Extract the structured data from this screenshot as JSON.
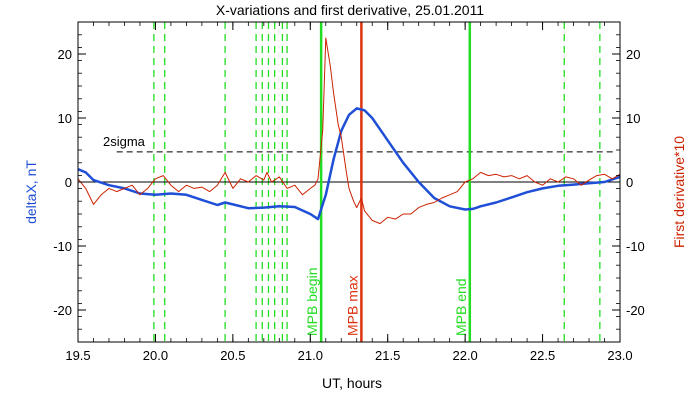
{
  "chart_data": {
    "type": "line",
    "title": "X-variations and first derivative, 25.01.2011",
    "xlabel": "UT, hours",
    "ylabel_left": "deltaX, nT",
    "ylabel_right": "First derivative*10",
    "xlim": [
      19.5,
      23.0
    ],
    "ylim": [
      -25,
      25
    ],
    "x_ticks": [
      "19.5",
      "20.0",
      "20.5",
      "21.0",
      "21.5",
      "22.0",
      "22.5",
      "23.0"
    ],
    "y_ticks": [
      "20",
      "10",
      "0",
      "-10",
      "-20"
    ],
    "colors": {
      "deltaX": "#1f4fd6",
      "derivative": "#cc2200",
      "green": "#22dd22",
      "red": "#dd3311",
      "axis": "#000000"
    },
    "threshold": {
      "label": "2sigma",
      "value": 4.7
    },
    "series": [
      {
        "key": "deltaX",
        "x": [
          19.5,
          19.55,
          19.6,
          19.7,
          19.8,
          19.9,
          20.0,
          20.1,
          20.2,
          20.3,
          20.4,
          20.45,
          20.5,
          20.6,
          20.7,
          20.8,
          20.9,
          21.0,
          21.05,
          21.1,
          21.15,
          21.2,
          21.25,
          21.3,
          21.35,
          21.4,
          21.5,
          21.6,
          21.7,
          21.8,
          21.9,
          22.0,
          22.05,
          22.1,
          22.2,
          22.3,
          22.4,
          22.5,
          22.6,
          22.7,
          22.8,
          22.9,
          23.0
        ],
        "y": [
          2.0,
          1.5,
          0.3,
          -0.5,
          -1.0,
          -1.8,
          -2.0,
          -1.8,
          -2.0,
          -2.8,
          -3.6,
          -3.2,
          -3.5,
          -4.1,
          -4.0,
          -3.8,
          -3.9,
          -5.0,
          -5.8,
          -2.0,
          3.5,
          8.0,
          10.5,
          11.5,
          11.2,
          10.0,
          6.5,
          3.0,
          0.0,
          -2.5,
          -3.8,
          -4.3,
          -4.2,
          -3.8,
          -3.2,
          -2.4,
          -1.6,
          -1.0,
          -0.6,
          -0.4,
          -0.2,
          0.0,
          0.8
        ]
      },
      {
        "key": "derivative",
        "x": [
          19.5,
          19.55,
          19.6,
          19.65,
          19.7,
          19.75,
          19.8,
          19.85,
          19.9,
          19.95,
          20.0,
          20.05,
          20.1,
          20.15,
          20.2,
          20.25,
          20.3,
          20.35,
          20.4,
          20.45,
          20.5,
          20.55,
          20.6,
          20.65,
          20.7,
          20.72,
          20.75,
          20.8,
          20.85,
          20.9,
          20.95,
          21.0,
          21.03,
          21.05,
          21.08,
          21.1,
          21.13,
          21.15,
          21.18,
          21.2,
          21.23,
          21.25,
          21.28,
          21.3,
          21.33,
          21.35,
          21.4,
          21.45,
          21.5,
          21.55,
          21.6,
          21.65,
          21.7,
          21.75,
          21.8,
          21.85,
          21.9,
          21.95,
          22.0,
          22.05,
          22.1,
          22.15,
          22.2,
          22.25,
          22.3,
          22.35,
          22.4,
          22.45,
          22.5,
          22.55,
          22.6,
          22.65,
          22.7,
          22.75,
          22.8,
          22.85,
          22.9,
          22.95,
          23.0
        ],
        "y": [
          0.5,
          -1.0,
          -3.5,
          -2.0,
          -1.0,
          -1.5,
          -1.0,
          -0.5,
          -2.0,
          -1.0,
          0.5,
          1.0,
          -0.5,
          -1.5,
          -0.5,
          -1.0,
          -0.8,
          -1.5,
          -0.5,
          1.5,
          -1.0,
          0.5,
          0.0,
          1.0,
          0.3,
          1.5,
          0.0,
          0.8,
          -1.0,
          -0.5,
          -2.0,
          -1.0,
          -0.5,
          0.5,
          8.0,
          22.5,
          18.0,
          14.0,
          9.0,
          7.0,
          2.0,
          -1.0,
          -3.0,
          -4.0,
          -2.5,
          -4.5,
          -6.0,
          -6.5,
          -5.5,
          -5.8,
          -5.0,
          -5.0,
          -4.0,
          -3.5,
          -3.2,
          -2.5,
          -2.0,
          -1.5,
          0.0,
          0.5,
          1.5,
          1.0,
          1.2,
          0.8,
          1.0,
          0.5,
          1.0,
          0.0,
          -0.5,
          0.5,
          0.0,
          0.8,
          0.5,
          -0.5,
          0.3,
          1.0,
          1.2,
          0.5,
          1.2
        ]
      }
    ],
    "dashed_verticals": [
      19.99,
      20.06,
      20.45,
      20.65,
      20.69,
      20.73,
      20.77,
      20.82,
      20.85,
      22.64,
      22.87
    ],
    "solid_markers": [
      {
        "x": 21.07,
        "label": "MPB begin",
        "color_key": "green"
      },
      {
        "x": 21.33,
        "label": "MPB max",
        "color_key": "red"
      },
      {
        "x": 22.03,
        "label": "MPB end",
        "color_key": "green"
      }
    ]
  }
}
